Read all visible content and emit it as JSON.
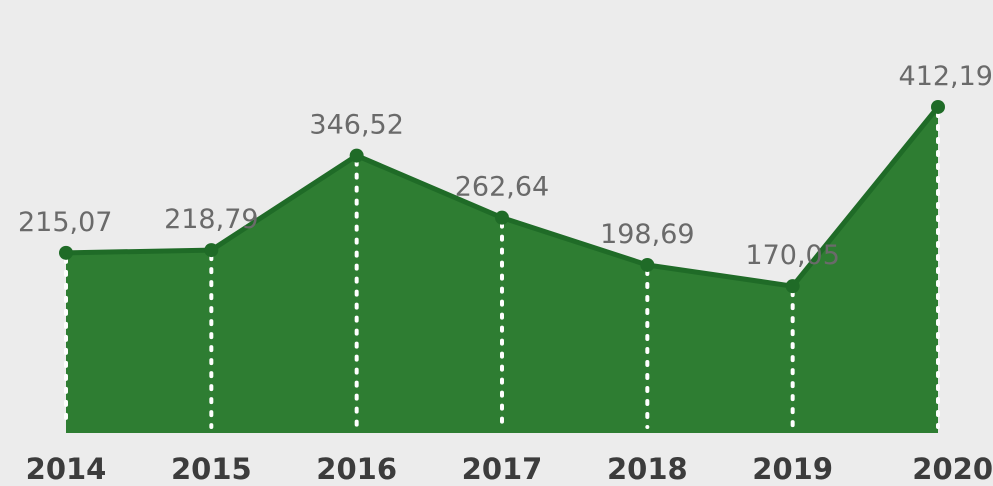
{
  "chart_data": {
    "type": "area",
    "categories": [
      "2014",
      "2015",
      "2016",
      "2017",
      "2018",
      "2019",
      "2020"
    ],
    "values": [
      215.07,
      218.79,
      346.52,
      262.64,
      198.69,
      170.05,
      412.19
    ],
    "data_labels": [
      "215,07",
      "218,79",
      "346,52",
      "262,64",
      "198,69",
      "170,05",
      "412,19"
    ],
    "title": "",
    "xlabel": "",
    "ylabel": "",
    "grid": false,
    "legend": "none",
    "colors": {
      "area_fill": "#2e7d32",
      "line": "#1f6b27",
      "marker": "#1f6b27",
      "drop_line": "#ffffff",
      "background": "#ececec",
      "data_label": "#6a6a6a",
      "tick_label": "#3c3c3c"
    }
  }
}
